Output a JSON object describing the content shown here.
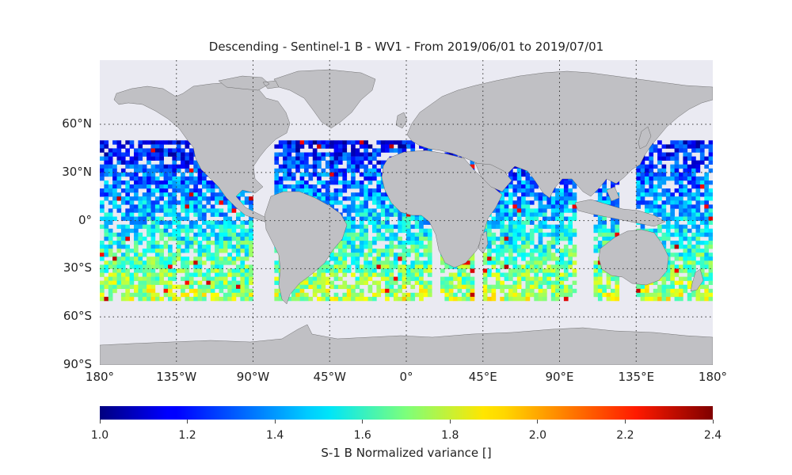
{
  "title": "Descending - Sentinel-1 B - WV1 - From 2019/06/01 to 2019/07/01",
  "map": {
    "projection": "plate-carree",
    "lon_range": [
      -180,
      180
    ],
    "lat_range": [
      -90,
      90
    ],
    "lat_ticks": [
      {
        "value": 60,
        "label": "60°N"
      },
      {
        "value": 30,
        "label": "30°N"
      },
      {
        "value": 0,
        "label": "0°"
      },
      {
        "value": -30,
        "label": "30°S"
      },
      {
        "value": -60,
        "label": "60°S"
      },
      {
        "value": -90,
        "label": "90°S"
      }
    ],
    "lon_ticks": [
      {
        "value": -180,
        "label": "180°"
      },
      {
        "value": -135,
        "label": "135°W"
      },
      {
        "value": -90,
        "label": "90°W"
      },
      {
        "value": -45,
        "label": "45°W"
      },
      {
        "value": 0,
        "label": "0°"
      },
      {
        "value": 45,
        "label": "45°E"
      },
      {
        "value": 90,
        "label": "90°E"
      },
      {
        "value": 135,
        "label": "135°E"
      },
      {
        "value": 180,
        "label": "180°"
      }
    ],
    "gridline_style": "dotted",
    "land_color": "#c0c0c4",
    "ocean_color": "#eaeaf2",
    "data_lat_range": [
      -50,
      50
    ]
  },
  "colorbar": {
    "colormap": "jet",
    "range": [
      1.0,
      2.4
    ],
    "ticks": [
      "1.0",
      "1.2",
      "1.4",
      "1.6",
      "1.8",
      "2.0",
      "2.2",
      "2.4"
    ],
    "label": "S-1 B Normalized variance []"
  }
}
